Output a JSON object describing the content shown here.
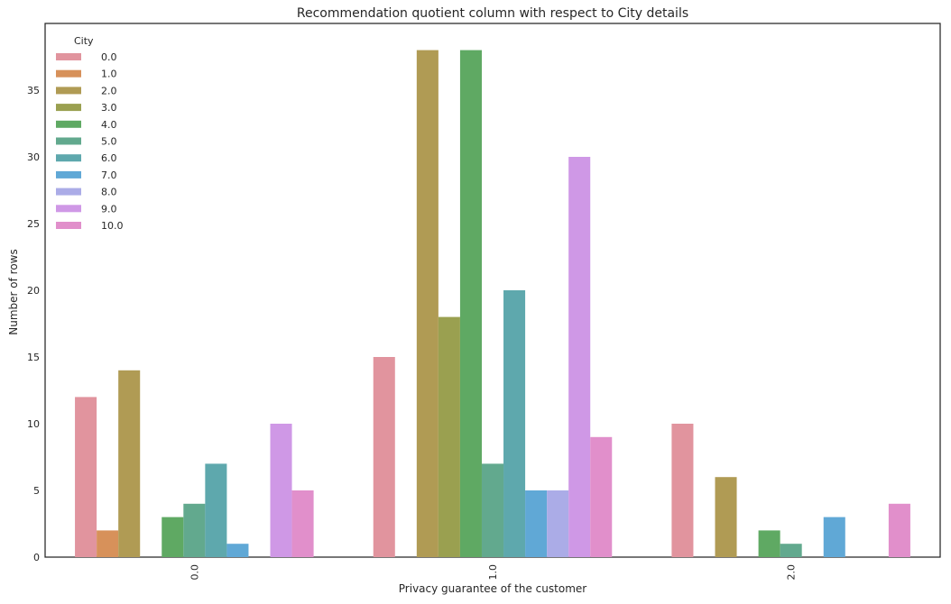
{
  "chart_data": {
    "type": "bar",
    "title": "Recommendation quotient column with respect to City details",
    "xlabel": "Privacy guarantee of the customer",
    "ylabel": "Number of rows",
    "categories": [
      "0.0",
      "1.0",
      "2.0"
    ],
    "yticks": [
      "0",
      "5",
      "10",
      "15",
      "20",
      "25",
      "30",
      "35"
    ],
    "ylim": [
      0,
      40
    ],
    "grid": false,
    "legend": {
      "title": "City",
      "placement": "top-left"
    },
    "series": [
      {
        "name": "0.0",
        "color": "#e1949e",
        "values": [
          12,
          15,
          10
        ]
      },
      {
        "name": "1.0",
        "color": "#d7915a",
        "values": [
          2,
          0,
          0
        ]
      },
      {
        "name": "2.0",
        "color": "#b09b54",
        "values": [
          14,
          38,
          6
        ]
      },
      {
        "name": "3.0",
        "color": "#9aa050",
        "values": [
          0,
          18,
          0
        ]
      },
      {
        "name": "4.0",
        "color": "#5fa963",
        "values": [
          3,
          38,
          2
        ]
      },
      {
        "name": "5.0",
        "color": "#62a98e",
        "values": [
          4,
          7,
          1
        ]
      },
      {
        "name": "6.0",
        "color": "#5ea8ad",
        "values": [
          7,
          20,
          0
        ]
      },
      {
        "name": "7.0",
        "color": "#60a8d6",
        "values": [
          1,
          5,
          3
        ]
      },
      {
        "name": "8.0",
        "color": "#abace7",
        "values": [
          0,
          5,
          0
        ]
      },
      {
        "name": "9.0",
        "color": "#cf98e6",
        "values": [
          10,
          30,
          0
        ]
      },
      {
        "name": "10.0",
        "color": "#e18fcb",
        "values": [
          5,
          9,
          4
        ]
      }
    ]
  }
}
